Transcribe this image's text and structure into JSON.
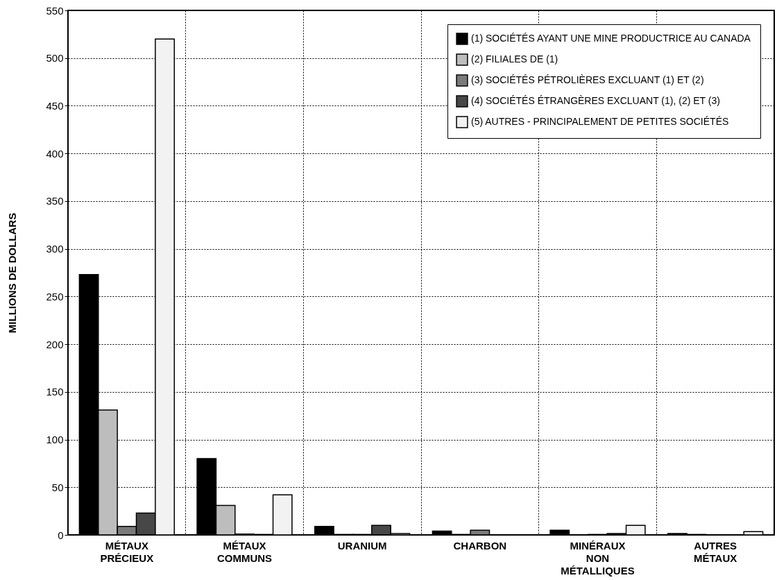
{
  "chart_data": {
    "type": "bar",
    "ylabel": "MILLIONS DE DOLLARS",
    "categories": [
      "MÉTAUX PRÉCIEUX",
      "MÉTAUX COMMUNS",
      "URANIUM",
      "CHARBON",
      "MINÉRAUX NON MÉTALLIQUES",
      "AUTRES MÉTAUX"
    ],
    "series": [
      {
        "name": "(1) SOCIÉTÉS AYANT UNE MINE PRODUCTRICE AU CANADA",
        "color": "#000000",
        "values": [
          273,
          80,
          9,
          4,
          5,
          1.5
        ]
      },
      {
        "name": "(2) FILIALES DE (1)",
        "color": "#bdbdbd",
        "values": [
          131,
          31,
          0.5,
          0.5,
          null,
          0.5
        ]
      },
      {
        "name": "(3) SOCIÉTÉS PÉTROLIÈRES EXCLUANT (1) ET (2)",
        "color": "#7a7a7a",
        "values": [
          9,
          1,
          0.5,
          5,
          0.5,
          null
        ]
      },
      {
        "name": "(4) SOCIÉTÉS ÉTRANGÈRES EXCLUANT (1), (2) ET (3)",
        "color": "#474747",
        "values": [
          23,
          0.5,
          10,
          null,
          1.5,
          null
        ]
      },
      {
        "name": "(5) AUTRES - PRINCIPALEMENT DE PETITES SOCIÉTÉS",
        "color": "#f2f2f2",
        "values": [
          520,
          42,
          1.5,
          null,
          10,
          3.5
        ]
      }
    ],
    "ylim": [
      0,
      550
    ],
    "yticks": [
      0,
      50,
      100,
      150,
      200,
      250,
      300,
      350,
      400,
      450,
      500,
      550
    ],
    "grid": true,
    "legend": "top right"
  }
}
